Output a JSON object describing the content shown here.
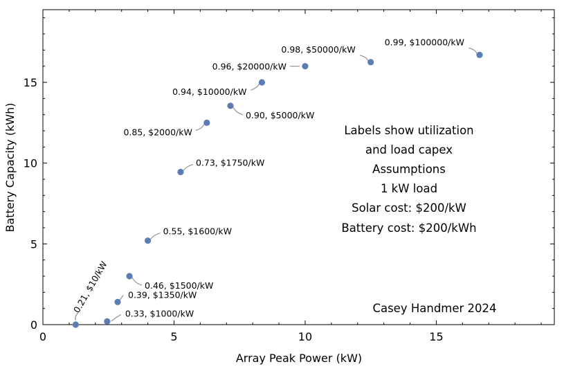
{
  "chart_data": {
    "type": "scatter",
    "title": "",
    "xlabel": "Array Peak Power (kW)",
    "ylabel": "Battery Capacity (kWh)",
    "xlim": [
      0,
      19.5
    ],
    "ylim": [
      0,
      19.5
    ],
    "xticks": [
      0,
      5,
      10,
      15
    ],
    "yticks": [
      0,
      5,
      10,
      15
    ],
    "grid": false,
    "marker_color": "#5b7db3",
    "leader_color": "#9a9a9a",
    "points": [
      {
        "x": 1.25,
        "y": 0.0,
        "label": "0.21, $10/kW"
      },
      {
        "x": 2.45,
        "y": 0.2,
        "label": "0.33, $1000/kW"
      },
      {
        "x": 2.85,
        "y": 1.4,
        "label": "0.39, $1350/kW"
      },
      {
        "x": 3.3,
        "y": 3.0,
        "label": "0.46, $1500/kW"
      },
      {
        "x": 4.0,
        "y": 5.2,
        "label": "0.55, $1600/kW"
      },
      {
        "x": 5.25,
        "y": 9.45,
        "label": "0.73, $1750/kW"
      },
      {
        "x": 6.25,
        "y": 12.5,
        "label": "0.85, $2000/kW"
      },
      {
        "x": 7.15,
        "y": 13.55,
        "label": "0.90, $5000/kW"
      },
      {
        "x": 8.35,
        "y": 15.0,
        "label": "0.94, $10000/kW"
      },
      {
        "x": 10.0,
        "y": 16.0,
        "label": "0.96, $20000/kW"
      },
      {
        "x": 12.5,
        "y": 16.25,
        "label": "0.98, $50000/kW"
      },
      {
        "x": 16.65,
        "y": 16.7,
        "label": "0.99, $100000/kW"
      }
    ],
    "annotations": [
      "Labels show utilization",
      "and load capex",
      "Assumptions",
      "1 kW load",
      "Solar cost: $200/kW",
      "Battery cost: $200/kWh"
    ],
    "credit": "Casey Handmer 2024"
  }
}
